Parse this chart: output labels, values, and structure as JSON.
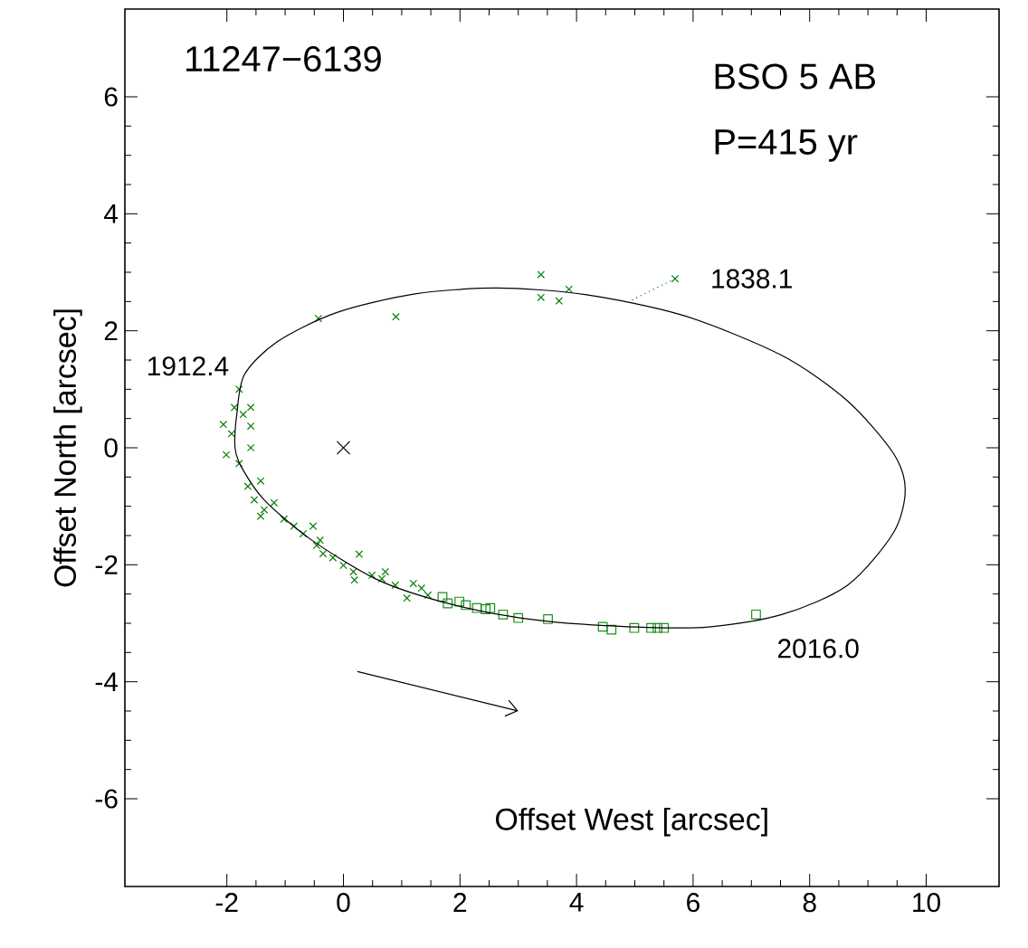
{
  "chart_data": {
    "type": "scatter",
    "title": "11247−6139",
    "xlabel": "Offset West [arcsec]",
    "ylabel": "Offset North [arcsec]",
    "annotations": [
      "BSO 5 AB",
      "P=415 yr",
      {
        "text": "1838.1",
        "x": 5.69,
        "y": 2.89
      },
      {
        "text": "1912.4",
        "x": -1.79,
        "y": 1.0
      },
      {
        "text": "2016.0",
        "x": 7.08,
        "y": -2.85
      }
    ],
    "xlim": [
      -3.75,
      11.25
    ],
    "ylim": [
      -7.5,
      7.5
    ],
    "xticks": [
      -2,
      0,
      2,
      4,
      6,
      8,
      10
    ],
    "yticks": [
      -6,
      -4,
      -2,
      0,
      2,
      4,
      6
    ],
    "grid": false,
    "series": [
      {
        "type": "line",
        "color": "#008000",
        "marker": "none",
        "line_style": "dotted",
        "x": [
          5.69,
          4.9
        ],
        "values": [
          2.89,
          2.5
        ]
      },
      {
        "type": "scatter",
        "color": "#008000",
        "marker": "cross",
        "x": [
          3.39,
          3.39,
          3.7,
          3.87,
          5.69,
          -0.43,
          0.9,
          -1.79,
          -1.87,
          -1.72,
          -1.59,
          -2.06,
          -1.92,
          -1.59,
          -1.59,
          -2.01,
          -1.79,
          -1.64,
          -1.42,
          -1.53,
          -1.36,
          -1.19,
          -1.42,
          -1.02,
          -0.85,
          -0.69,
          -0.52,
          -0.46,
          -0.35,
          -0.4,
          -0.18,
          0.0,
          0.17,
          0.27,
          0.19,
          0.49,
          0.66,
          0.72,
          0.89,
          1.09,
          1.2,
          1.34,
          1.45
        ],
        "values": [
          2.96,
          2.57,
          2.51,
          2.71,
          2.89,
          2.21,
          2.24,
          1.0,
          0.69,
          0.57,
          0.69,
          0.4,
          0.24,
          0.37,
          0.0,
          -0.12,
          -0.27,
          -0.66,
          -0.57,
          -0.89,
          -1.06,
          -0.94,
          -1.17,
          -1.22,
          -1.34,
          -1.47,
          -1.34,
          -1.67,
          -1.81,
          -1.58,
          -1.88,
          -2.01,
          -2.12,
          -1.82,
          -2.26,
          -2.18,
          -2.24,
          -2.12,
          -2.35,
          -2.57,
          -2.32,
          -2.4,
          -2.52
        ]
      },
      {
        "type": "scatter",
        "color": "#1a8f1a",
        "marker": "square",
        "x": [
          1.7,
          1.79,
          1.99,
          2.1,
          2.29,
          2.44,
          2.52,
          2.74,
          3.0,
          3.51,
          4.45,
          4.6,
          4.99,
          5.28,
          5.39,
          5.5,
          7.08
        ],
        "values": [
          -2.55,
          -2.66,
          -2.63,
          -2.69,
          -2.74,
          -2.76,
          -2.74,
          -2.85,
          -2.91,
          -2.93,
          -3.06,
          -3.11,
          -3.08,
          -3.08,
          -3.08,
          -3.08,
          -2.85
        ]
      },
      {
        "type": "scatter",
        "color": "#000000",
        "marker": "cross",
        "x": [
          0
        ],
        "values": [
          0
        ]
      }
    ]
  }
}
